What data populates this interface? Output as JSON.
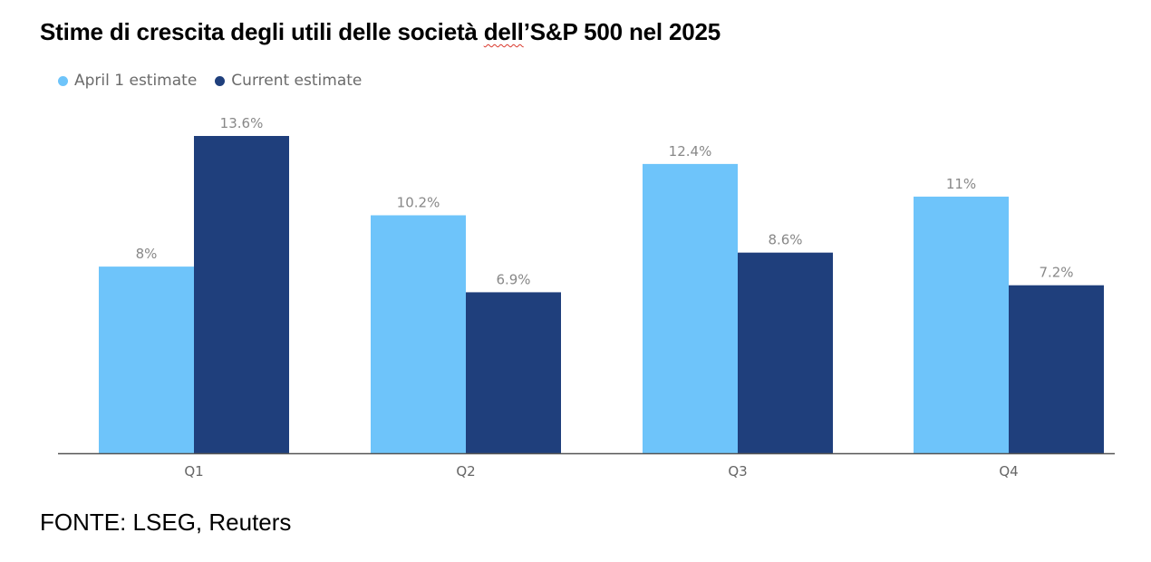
{
  "title": {
    "prefix": "Stime di crescita degli utili delle società ",
    "flagged": "dell",
    "suffix": "’S&P 500 nel 2025"
  },
  "source": "FONTE: LSEG, Reuters",
  "colors": {
    "april": "#6ec4fa",
    "current": "#1f3f7c",
    "axis": "#555555",
    "label": "#888888"
  },
  "chart_data": {
    "type": "bar",
    "categories": [
      "Q1",
      "Q2",
      "Q3",
      "Q4"
    ],
    "series": [
      {
        "name": "April 1 estimate",
        "values": [
          8,
          10.2,
          12.4,
          11
        ],
        "labels": [
          "8%",
          "10.2%",
          "12.4%",
          "11%"
        ]
      },
      {
        "name": "Current estimate",
        "values": [
          13.6,
          6.9,
          8.6,
          7.2
        ],
        "labels": [
          "13.6%",
          "6.9%",
          "8.6%",
          "7.2%"
        ]
      }
    ],
    "ylim": [
      0,
      13.6
    ],
    "grid": false,
    "legend": "top-left"
  }
}
